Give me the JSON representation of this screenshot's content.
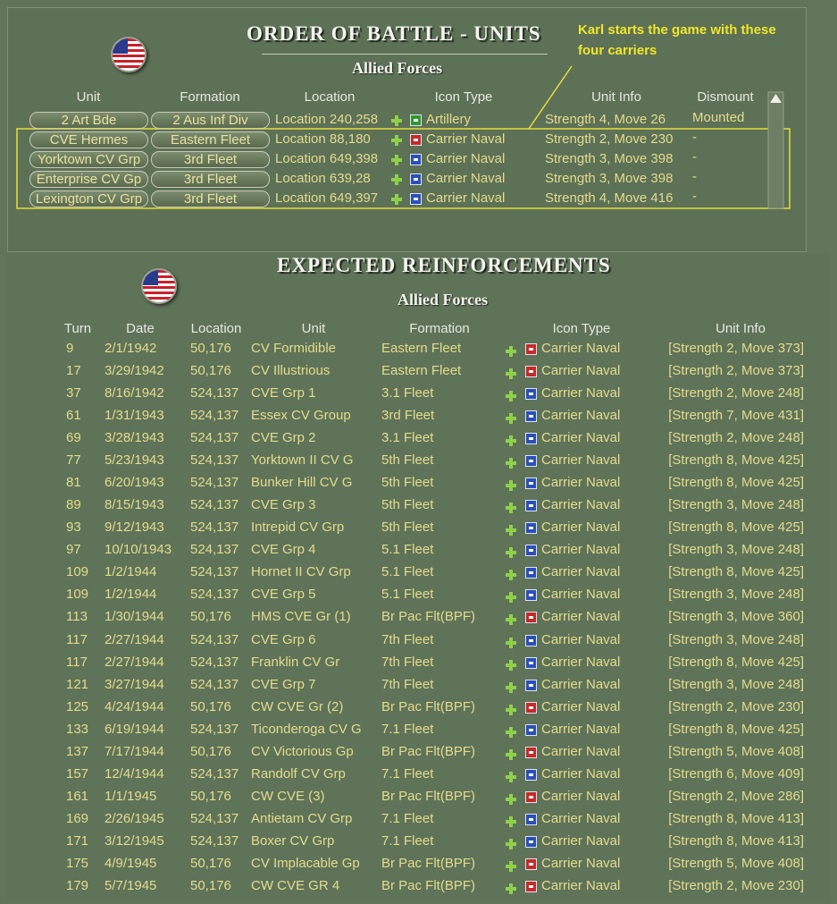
{
  "units_panel": {
    "title": "ORDER OF BATTLE - UNITS",
    "subtitle": "Allied Forces",
    "annotation": "Karl starts the game with these four carriers",
    "columns": [
      "Unit",
      "Formation",
      "Location",
      "Icon Type",
      "Unit Info",
      "Dismount"
    ],
    "rows": [
      [
        "2 Art Bde",
        "2 Aus Inf Div",
        "Location 240,258",
        "Artillery",
        "Strength 4, Move 26",
        "Mounted"
      ],
      [
        "CVE Hermes",
        "Eastern Fleet",
        "Location 88,180",
        "Carrier Naval",
        "Strength 2, Move 230",
        "-"
      ],
      [
        "Yorktown CV Grp",
        "3rd Fleet",
        "Location 649,398",
        "Carrier Naval",
        "Strength 3, Move 398",
        "-"
      ],
      [
        "Enterprise CV Gp",
        "3rd Fleet",
        "Location 639,28",
        "Carrier Naval",
        "Strength 3, Move 398",
        "-"
      ],
      [
        "Lexington CV Grp",
        "3rd Fleet",
        "Location 649,397",
        "Carrier Naval",
        "Strength 4, Move 416",
        "-"
      ]
    ],
    "icon_colors": [
      "#2e9a2e",
      "#c42a2a",
      "#2a4fb8",
      "#2a4fb8",
      "#2a4fb8"
    ]
  },
  "reinforcements_panel": {
    "title": "EXPECTED REINFORCEMENTS",
    "subtitle": "Allied Forces",
    "columns": [
      "Turn",
      "Date",
      "Location",
      "Unit",
      "Formation",
      "Icon Type",
      "Unit Info"
    ],
    "rows": [
      [
        "9",
        "2/1/1942",
        "50,176",
        "CV Formidible",
        "Eastern Fleet",
        "Carrier Naval",
        "[Strength 2, Move 373]"
      ],
      [
        "17",
        "3/29/1942",
        "50,176",
        "CV Illustrious",
        "Eastern Fleet",
        "Carrier Naval",
        "[Strength 2, Move 373]"
      ],
      [
        "37",
        "8/16/1942",
        "524,137",
        "CVE Grp 1",
        "3.1 Fleet",
        "Carrier Naval",
        "[Strength 2, Move 248]"
      ],
      [
        "61",
        "1/31/1943",
        "524,137",
        "Essex CV Group",
        "3rd Fleet",
        "Carrier Naval",
        "[Strength 7, Move 431]"
      ],
      [
        "69",
        "3/28/1943",
        "524,137",
        "CVE Grp 2",
        "3.1 Fleet",
        "Carrier Naval",
        "[Strength 2, Move 248]"
      ],
      [
        "77",
        "5/23/1943",
        "524,137",
        "Yorktown II CV G",
        "5th Fleet",
        "Carrier Naval",
        "[Strength 8, Move 425]"
      ],
      [
        "81",
        "6/20/1943",
        "524,137",
        "Bunker Hill CV G",
        "5th Fleet",
        "Carrier Naval",
        "[Strength 8, Move 425]"
      ],
      [
        "89",
        "8/15/1943",
        "524,137",
        "CVE Grp 3",
        "5th Fleet",
        "Carrier Naval",
        "[Strength 3, Move 248]"
      ],
      [
        "93",
        "9/12/1943",
        "524,137",
        "Intrepid CV Grp",
        "5th Fleet",
        "Carrier Naval",
        "[Strength 8, Move 425]"
      ],
      [
        "97",
        "10/10/1943",
        "524,137",
        "CVE Grp 4",
        "5.1 Fleet",
        "Carrier Naval",
        "[Strength 3, Move 248]"
      ],
      [
        "109",
        "1/2/1944",
        "524,137",
        "Hornet II CV Grp",
        "5.1 Fleet",
        "Carrier Naval",
        "[Strength 8, Move 425]"
      ],
      [
        "109",
        "1/2/1944",
        "524,137",
        "CVE Grp 5",
        "5.1 Fleet",
        "Carrier Naval",
        "[Strength 3, Move 248]"
      ],
      [
        "113",
        "1/30/1944",
        "50,176",
        "HMS CVE Gr (1)",
        "Br Pac Flt(BPF)",
        "Carrier Naval",
        "[Strength 3, Move 360]"
      ],
      [
        "117",
        "2/27/1944",
        "524,137",
        "CVE Grp 6",
        "7th Fleet",
        "Carrier Naval",
        "[Strength 3, Move 248]"
      ],
      [
        "117",
        "2/27/1944",
        "524,137",
        "Franklin CV Gr",
        "7th Fleet",
        "Carrier Naval",
        "[Strength 8, Move 425]"
      ],
      [
        "121",
        "3/27/1944",
        "524,137",
        "CVE Grp 7",
        "7th Fleet",
        "Carrier Naval",
        "[Strength 3, Move 248]"
      ],
      [
        "125",
        "4/24/1944",
        "50,176",
        "CW CVE Gr (2)",
        "Br Pac Flt(BPF)",
        "Carrier Naval",
        "[Strength 2, Move 230]"
      ],
      [
        "133",
        "6/19/1944",
        "524,137",
        "Ticonderoga CV G",
        "7.1 Fleet",
        "Carrier Naval",
        "[Strength 8, Move 425]"
      ],
      [
        "137",
        "7/17/1944",
        "50,176",
        "CV Victorious Gp",
        "Br Pac Flt(BPF)",
        "Carrier Naval",
        "[Strength 5, Move 408]"
      ],
      [
        "157",
        "12/4/1944",
        "524,137",
        "Randolf CV Grp",
        "7.1 Fleet",
        "Carrier Naval",
        "[Strength 6, Move 409]"
      ],
      [
        "161",
        "1/1/1945",
        "50,176",
        "CW CVE (3)",
        "Br Pac Flt(BPF)",
        "Carrier Naval",
        "[Strength 2, Move 286]"
      ],
      [
        "169",
        "2/26/1945",
        "524,137",
        "Antietam CV Grp",
        "7.1 Fleet",
        "Carrier Naval",
        "[Strength 8, Move 413]"
      ],
      [
        "171",
        "3/12/1945",
        "524,137",
        "Boxer CV Grp",
        "7.1 Fleet",
        "Carrier Naval",
        "[Strength 8, Move 413]"
      ],
      [
        "175",
        "4/9/1945",
        "50,176",
        "CV Implacable Gp",
        "Br Pac Flt(BPF)",
        "Carrier Naval",
        "[Strength 5, Move 408]"
      ],
      [
        "179",
        "5/7/1945",
        "50,176",
        "CW CVE GR 4",
        "Br Pac Flt(BPF)",
        "Carrier Naval",
        "[Strength 2, Move 230]"
      ]
    ],
    "icon_colors": [
      "#c42a2a",
      "#c42a2a",
      "#2a4fb8",
      "#2a4fb8",
      "#2a4fb8",
      "#2a4fb8",
      "#2a4fb8",
      "#2a4fb8",
      "#2a4fb8",
      "#2a4fb8",
      "#2a4fb8",
      "#2a4fb8",
      "#c42a2a",
      "#2a4fb8",
      "#2a4fb8",
      "#2a4fb8",
      "#c42a2a",
      "#2a4fb8",
      "#c42a2a",
      "#2a4fb8",
      "#c42a2a",
      "#2a4fb8",
      "#2a4fb8",
      "#c42a2a",
      "#c42a2a"
    ]
  }
}
